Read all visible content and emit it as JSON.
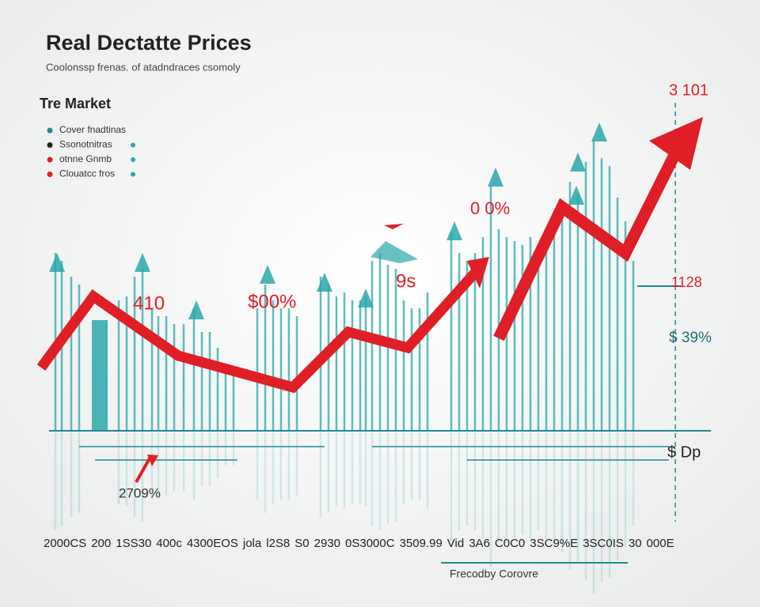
{
  "header": {
    "title": "Real Dectatte Prices",
    "subtitle": "Coolonssp frenas. of atadndraces csomoly"
  },
  "legend": {
    "title": "Tre Market",
    "entries": [
      "Cover fnadtinas",
      "Ssonotnitras",
      "otnne Gnmb",
      "Clouatcc fros"
    ]
  },
  "annotations": [
    "410",
    "$00%",
    "9s",
    "0 0%",
    "3 101",
    "1128",
    "$ 39%",
    "$ Dp",
    "2709%"
  ],
  "x_labels": [
    "2000CS",
    "200",
    "1SS30",
    "400c",
    "4300EOS",
    "jola",
    "l2S8",
    "S0",
    "2930",
    "0S3000C",
    "3509.99",
    "Vid",
    "3A6",
    "C0C0",
    "3SC9%E",
    "3SC0IS",
    "30",
    "000E"
  ],
  "caption": "Frecodby Corovre"
}
